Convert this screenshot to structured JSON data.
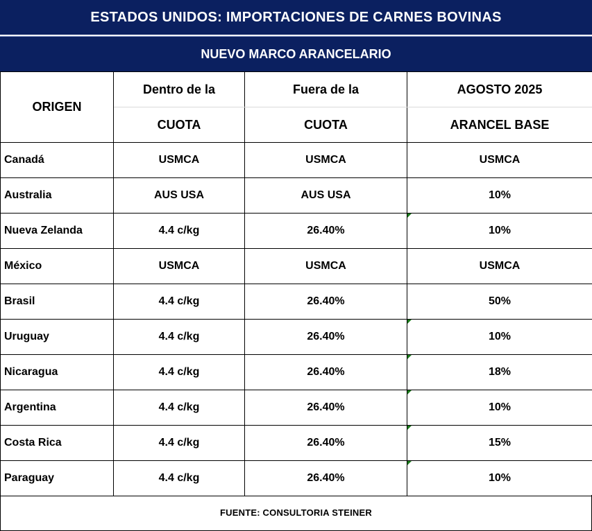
{
  "title": "ESTADOS UNIDOS: IMPORTACIONES DE CARNES BOVINAS",
  "subtitle": "NUEVO MARCO ARANCELARIO",
  "headers": {
    "origen": "ORIGEN",
    "col1": [
      "Dentro de la",
      "CUOTA"
    ],
    "col2": [
      "Fuera de la",
      "CUOTA"
    ],
    "col3": [
      "AGOSTO 2025",
      "ARANCEL BASE"
    ]
  },
  "rows": [
    {
      "origen": "Canadá",
      "dentro": "USMCA",
      "fuera": "USMCA",
      "arancel": "USMCA"
    },
    {
      "origen": "Australia",
      "dentro": "AUS USA",
      "fuera": "AUS USA",
      "arancel": "10%"
    },
    {
      "origen": "Nueva Zelanda",
      "dentro": "4.4 c/kg",
      "fuera": "26.40%",
      "arancel": "10%"
    },
    {
      "origen": "México",
      "dentro": "USMCA",
      "fuera": "USMCA",
      "arancel": "USMCA"
    },
    {
      "origen": "Brasil",
      "dentro": "4.4 c/kg",
      "fuera": "26.40%",
      "arancel": "50%"
    },
    {
      "origen": "Uruguay",
      "dentro": "4.4 c/kg",
      "fuera": "26.40%",
      "arancel": "10%"
    },
    {
      "origen": "Nicaragua",
      "dentro": "4.4 c/kg",
      "fuera": "26.40%",
      "arancel": "18%"
    },
    {
      "origen": "Argentina",
      "dentro": "4.4 c/kg",
      "fuera": "26.40%",
      "arancel": "10%"
    },
    {
      "origen": "Costa Rica",
      "dentro": "4.4 c/kg",
      "fuera": "26.40%",
      "arancel": "15%"
    },
    {
      "origen": "Paraguay",
      "dentro": "4.4 c/kg",
      "fuera": "26.40%",
      "arancel": "10%"
    }
  ],
  "footer": "FUENTE: CONSULTORIA STEINER",
  "colors": {
    "banner": "#0b2060",
    "marker": "#1a7a1a"
  }
}
